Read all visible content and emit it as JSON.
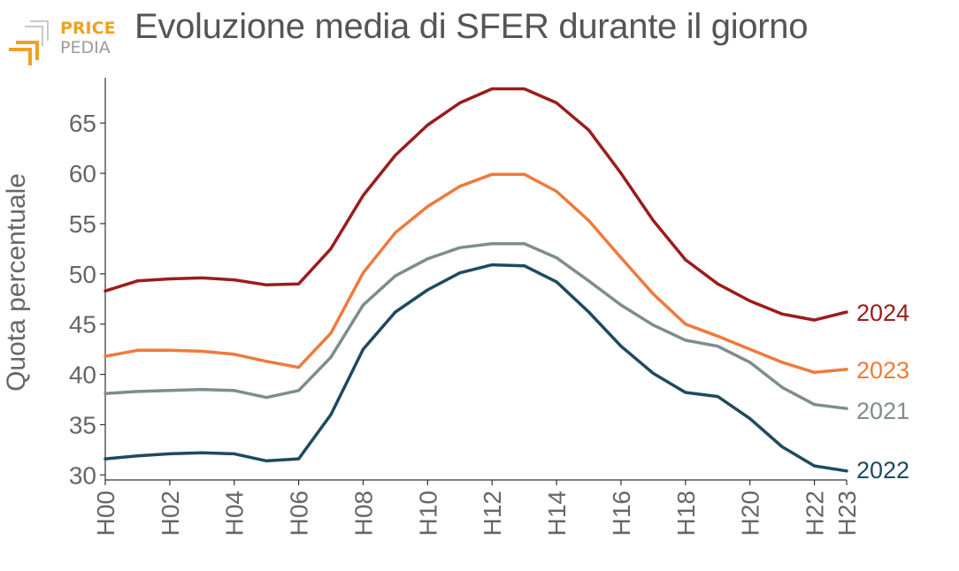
{
  "logo": {
    "line1": "PRICE",
    "line2": "PEDIA"
  },
  "title": "Evoluzione media di SFER durante il giorno",
  "chart_data": {
    "type": "line",
    "title": "Evoluzione media di SFER durante il giorno",
    "xlabel": "",
    "ylabel": "Quota percentuale",
    "ylim": [
      29.5,
      69.5
    ],
    "yticks": [
      30,
      35,
      40,
      45,
      50,
      55,
      60,
      65
    ],
    "categories": [
      "H00",
      "H01",
      "H02",
      "H03",
      "H04",
      "H05",
      "H06",
      "H07",
      "H08",
      "H09",
      "H10",
      "H11",
      "H12",
      "H13",
      "H14",
      "H15",
      "H16",
      "H17",
      "H18",
      "H19",
      "H20",
      "H21",
      "H22",
      "H23"
    ],
    "xtick_labels": [
      "H00",
      "H02",
      "H04",
      "H06",
      "H08",
      "H10",
      "H12",
      "H14",
      "H16",
      "H18",
      "H20",
      "H22",
      "H23"
    ],
    "series": [
      {
        "name": "2024",
        "color": "#9b1c1c",
        "values": [
          48.3,
          49.3,
          49.5,
          49.6,
          49.4,
          48.9,
          49.0,
          52.5,
          57.8,
          61.8,
          64.8,
          67.0,
          68.4,
          68.4,
          67.0,
          64.3,
          60.0,
          55.3,
          51.4,
          49.0,
          47.3,
          46.0,
          45.4,
          46.2
        ]
      },
      {
        "name": "2023",
        "color": "#ee7a3c",
        "values": [
          41.8,
          42.4,
          42.4,
          42.3,
          42.0,
          41.3,
          40.7,
          44.1,
          50.1,
          54.1,
          56.7,
          58.7,
          59.9,
          59.9,
          58.2,
          55.3,
          51.6,
          48.0,
          45.0,
          43.8,
          42.5,
          41.2,
          40.2,
          40.5
        ]
      },
      {
        "name": "2021",
        "color": "#7d8d8e",
        "values": [
          38.1,
          38.3,
          38.4,
          38.5,
          38.4,
          37.7,
          38.4,
          41.7,
          46.9,
          49.8,
          51.5,
          52.6,
          53.0,
          53.0,
          51.6,
          49.3,
          46.9,
          44.9,
          43.4,
          42.8,
          41.2,
          38.7,
          37.0,
          36.6
        ]
      },
      {
        "name": "2022",
        "color": "#1e4a5e",
        "values": [
          31.6,
          31.9,
          32.1,
          32.2,
          32.1,
          31.4,
          31.6,
          36.0,
          42.5,
          46.2,
          48.4,
          50.1,
          50.9,
          50.8,
          49.2,
          46.2,
          42.8,
          40.1,
          38.2,
          37.8,
          35.6,
          32.8,
          30.9,
          30.4
        ]
      }
    ]
  }
}
